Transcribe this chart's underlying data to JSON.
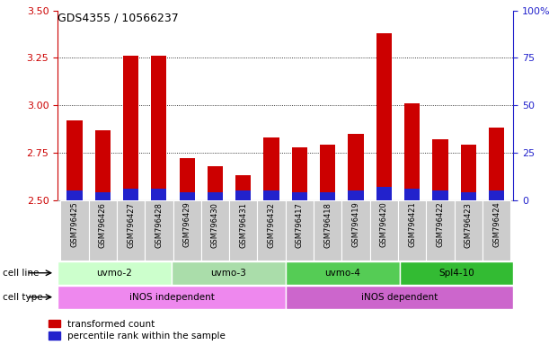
{
  "title": "GDS4355 / 10566237",
  "samples": [
    "GSM796425",
    "GSM796426",
    "GSM796427",
    "GSM796428",
    "GSM796429",
    "GSM796430",
    "GSM796431",
    "GSM796432",
    "GSM796417",
    "GSM796418",
    "GSM796419",
    "GSM796420",
    "GSM796421",
    "GSM796422",
    "GSM796423",
    "GSM796424"
  ],
  "transformed_count": [
    2.92,
    2.87,
    3.26,
    3.26,
    2.72,
    2.68,
    2.63,
    2.83,
    2.78,
    2.79,
    2.85,
    3.38,
    3.01,
    2.82,
    2.79,
    2.88
  ],
  "percentile_rank_pct": [
    5,
    4,
    6,
    6,
    4,
    4,
    5,
    5,
    4,
    4,
    5,
    7,
    6,
    5,
    4,
    5
  ],
  "base": 2.5,
  "ylim_left": [
    2.5,
    3.5
  ],
  "ylim_right": [
    0,
    100
  ],
  "yticks_left": [
    2.5,
    2.75,
    3.0,
    3.25,
    3.5
  ],
  "yticks_right": [
    0,
    25,
    50,
    75,
    100
  ],
  "bar_color_red": "#cc0000",
  "bar_color_blue": "#2222cc",
  "cell_line_groups": [
    {
      "label": "uvmo-2",
      "start": 0,
      "end": 4,
      "color": "#ccffcc"
    },
    {
      "label": "uvmo-3",
      "start": 4,
      "end": 8,
      "color": "#aaddaa"
    },
    {
      "label": "uvmo-4",
      "start": 8,
      "end": 12,
      "color": "#55cc55"
    },
    {
      "label": "Spl4-10",
      "start": 12,
      "end": 16,
      "color": "#33bb33"
    }
  ],
  "cell_type_groups": [
    {
      "label": "iNOS independent",
      "start": 0,
      "end": 8,
      "color": "#ee88ee"
    },
    {
      "label": "iNOS dependent",
      "start": 8,
      "end": 16,
      "color": "#cc66cc"
    }
  ],
  "legend_red": "transformed count",
  "legend_blue": "percentile rank within the sample",
  "cell_line_label": "cell line",
  "cell_type_label": "cell type",
  "grid_color": "#000000",
  "bg_color": "#ffffff",
  "label_area_color": "#cccccc",
  "left_axis_color": "#cc0000",
  "right_axis_color": "#2222cc",
  "grid_dotted_ticks": [
    2.75,
    3.0,
    3.25
  ],
  "bar_width": 0.55
}
